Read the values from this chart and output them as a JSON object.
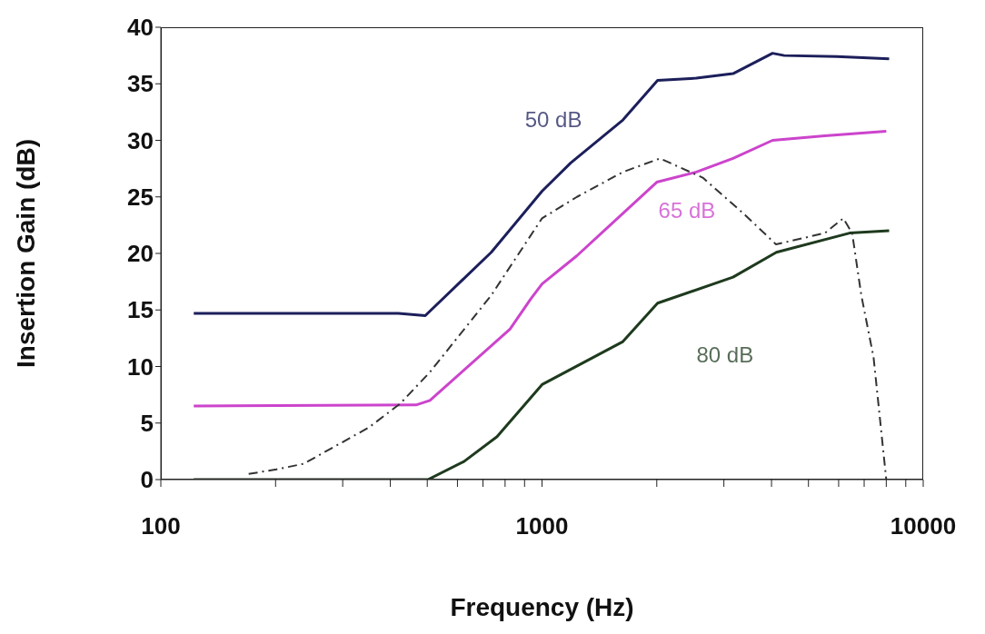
{
  "chart_data": {
    "type": "line",
    "xlabel": "Frequency (Hz)",
    "ylabel": "Insertion Gain (dB)",
    "log": "x",
    "xlim": [
      100,
      10000
    ],
    "ylim": [
      0,
      40
    ],
    "xticks": [
      100,
      {
        "value": 200,
        "label": null
      },
      {
        "value": 300,
        "label": null
      },
      {
        "value": 400,
        "label": null
      },
      {
        "value": 500,
        "label": null
      },
      {
        "value": 600,
        "label": null
      },
      {
        "value": 700,
        "label": null
      },
      {
        "value": 800,
        "label": null
      },
      {
        "value": 900,
        "label": null
      },
      1000,
      {
        "value": 2000,
        "label": null
      },
      {
        "value": 3000,
        "label": null
      },
      {
        "value": 4000,
        "label": null
      },
      {
        "value": 5000,
        "label": null
      },
      {
        "value": 6000,
        "label": null
      },
      {
        "value": 7000,
        "label": null
      },
      {
        "value": 8000,
        "label": null
      },
      {
        "value": 9000,
        "label": null
      },
      10000
    ],
    "yticks": [
      0,
      5,
      10,
      15,
      20,
      25,
      30,
      35,
      40
    ],
    "grid": false,
    "legend": false,
    "marker": "none",
    "series": [
      {
        "color": "#1c1f5a",
        "line_style": "solid",
        "x": [
          122,
          420,
          494,
          736,
          1000,
          1189,
          1630,
          2010,
          2540,
          3170,
          4025,
          4320,
          5930,
          8140
        ],
        "values": [
          14.7,
          14.7,
          14.5,
          20.1,
          25.5,
          28,
          31.8,
          35.3,
          35.5,
          35.9,
          37.7,
          37.5,
          37.4,
          37.2
        ]
      },
      {
        "color": "#cc44cc",
        "line_style": "solid",
        "x": [
          122,
          467,
          508,
          824,
          935,
          1000,
          1235,
          2000,
          2540,
          3170,
          4025,
          5520,
          8000
        ],
        "values": [
          6.5,
          6.6,
          7,
          13.3,
          16,
          17.3,
          19.8,
          26.3,
          27.2,
          28.4,
          30,
          30.4,
          30.8
        ]
      },
      {
        "color": "#1e3a1e",
        "line_style": "solid",
        "x": [
          122,
          502,
          624,
          762,
          1000,
          1630,
          2010,
          3170,
          4120,
          6410,
          8140
        ],
        "values": [
          0,
          0,
          1.6,
          3.8,
          8.4,
          12.2,
          15.6,
          17.9,
          20.1,
          21.8,
          22
        ]
      },
      {
        "color": "#333333",
        "line_style": "dashed",
        "x": [
          170,
          201,
          237,
          351,
          424,
          508,
          736,
          1000,
          1235,
          1630,
          2040,
          2640,
          3410,
          4110,
          5520,
          6170,
          6510,
          6880,
          7410,
          8000
        ],
        "values": [
          0.5,
          0.9,
          1.4,
          4.6,
          6.7,
          9.5,
          16.3,
          23.1,
          25,
          27.2,
          28.4,
          26.7,
          23.4,
          20.8,
          21.8,
          23.1,
          21.8,
          16.3,
          10.8,
          0
        ]
      }
    ],
    "annotations": [
      "50 dB",
      "65 dB",
      "80 dB"
    ]
  }
}
